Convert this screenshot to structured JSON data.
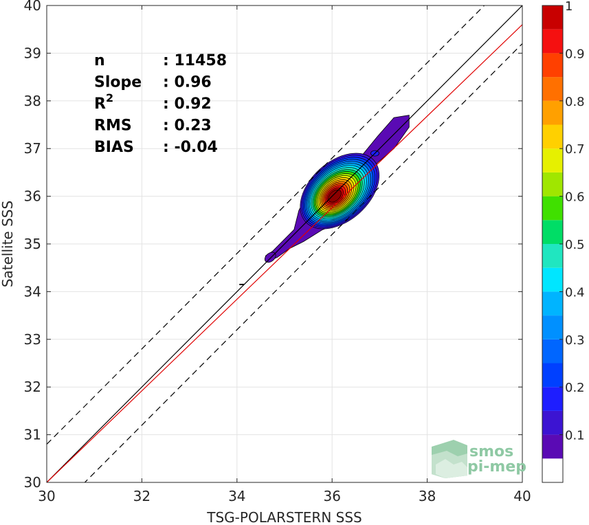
{
  "chart_data": {
    "type": "contour",
    "xlabel": "TSG-POLARSTERN SSS",
    "ylabel": "Satellite SSS",
    "xlim": [
      30,
      40
    ],
    "ylim": [
      30,
      40
    ],
    "xticks": [
      30,
      32,
      34,
      36,
      38,
      40
    ],
    "yticks": [
      30,
      31,
      32,
      33,
      34,
      35,
      36,
      37,
      38,
      39,
      40
    ],
    "grid": true,
    "stats": [
      {
        "label": "n",
        "sep": ": ",
        "value": "11458"
      },
      {
        "label": "Slope",
        "sep": ": ",
        "value": "0.96"
      },
      {
        "label": "R",
        "sup": "2",
        "sep": ": ",
        "value": "0.92"
      },
      {
        "label": "RMS",
        "sep": ": ",
        "value": "0.23"
      },
      {
        "label": "BIAS",
        "sep": ": ",
        "value": "-0.04"
      }
    ],
    "lines": [
      {
        "kind": "identity",
        "color": "#000000",
        "style": "solid",
        "points": [
          [
            30,
            30
          ],
          [
            40,
            40
          ]
        ]
      },
      {
        "kind": "upper-bound",
        "color": "#000000",
        "style": "dashed",
        "points": [
          [
            30,
            30.8
          ],
          [
            40,
            40.8
          ]
        ]
      },
      {
        "kind": "lower-bound",
        "color": "#000000",
        "style": "dashed",
        "points": [
          [
            30,
            29.2
          ],
          [
            40,
            39.2
          ]
        ]
      },
      {
        "kind": "regression",
        "color": "#e00000",
        "style": "solid",
        "points": [
          [
            30,
            30.0
          ],
          [
            40,
            39.6
          ]
        ]
      }
    ],
    "density_peak": {
      "x": 36.05,
      "y": 36.0
    },
    "contour_levels": [
      0.05,
      0.1,
      0.15,
      0.2,
      0.25,
      0.3,
      0.35,
      0.4,
      0.45,
      0.5,
      0.55,
      0.6,
      0.65,
      0.7,
      0.75,
      0.8,
      0.85,
      0.9,
      0.95,
      1.0
    ],
    "contour_colors": [
      "#5a0ab4",
      "#3c14d2",
      "#1e1eff",
      "#0040ff",
      "#0066ff",
      "#0090ff",
      "#00b4ff",
      "#00e6ff",
      "#20e6c0",
      "#00dd66",
      "#40e000",
      "#a0e600",
      "#e6f000",
      "#ffd000",
      "#ffa000",
      "#ff7000",
      "#ff4000",
      "#f51010",
      "#c80000",
      "#8c0000"
    ],
    "colorbar": {
      "range": [
        0,
        1
      ],
      "ticks": [
        "0.1",
        "0.2",
        "0.3",
        "0.4",
        "0.5",
        "0.6",
        "0.7",
        "0.8",
        "0.9",
        "1"
      ]
    }
  },
  "logo": {
    "line1": "smos",
    "line2": "pi-mep"
  }
}
